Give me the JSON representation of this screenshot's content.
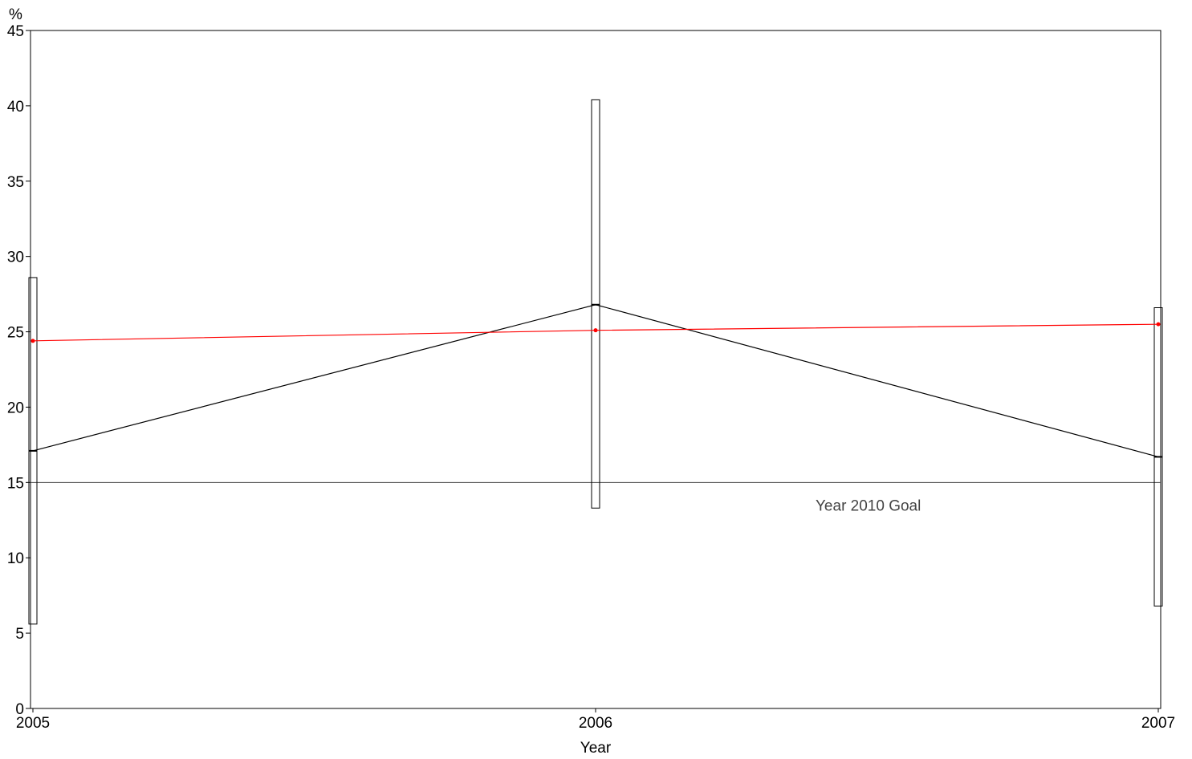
{
  "chart_data": {
    "type": "line",
    "title": "",
    "xlabel": "Year",
    "ylabel": "%",
    "x": [
      2005,
      2006,
      2007
    ],
    "x_tick_labels": [
      "2005",
      "2006",
      "2007"
    ],
    "ylim": [
      0,
      45
    ],
    "y_ticks": [
      0,
      5,
      10,
      15,
      20,
      25,
      30,
      35,
      40,
      45
    ],
    "grid": false,
    "legend": "none",
    "series": [
      {
        "values": [
          17.1,
          26.8,
          16.7
        ],
        "ci_lower": [
          5.6,
          13.3,
          6.8
        ],
        "ci_upper": [
          28.6,
          40.4,
          26.6
        ],
        "color": "#000000"
      },
      {
        "values": [
          24.4,
          25.1,
          25.5
        ],
        "color": "#ff0000"
      }
    ],
    "reference_line": {
      "value": 15,
      "label": "Year 2010 Goal",
      "color": "#444444"
    }
  }
}
